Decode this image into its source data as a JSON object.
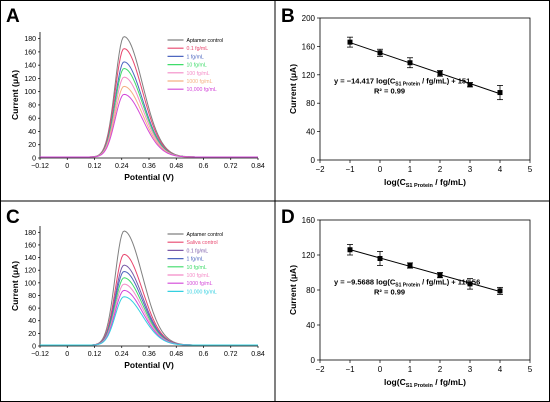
{
  "panels": [
    {
      "letter": "A",
      "chart_data": {
        "type": "line",
        "xlabel": "Potential (V)",
        "ylabel": "Current (μA)",
        "xlim": [
          -0.12,
          0.84
        ],
        "ylim": [
          0,
          190
        ],
        "xticks": [
          "−0.12",
          "0",
          "0.12",
          "0.24",
          "0.36",
          "0.48",
          "0.6",
          "0.72",
          "0.84"
        ],
        "yticks": [
          "0",
          "20",
          "40",
          "60",
          "80",
          "100",
          "120",
          "140",
          "160",
          "180"
        ],
        "legend_position": "top-right",
        "peak_x": 0.25,
        "series": [
          {
            "name": "Aptamer control",
            "peak": 183,
            "color": "#808080"
          },
          {
            "name": "0.1 fg/mL",
            "peak": 165,
            "color": "#e8476e"
          },
          {
            "name": "1 fg/mL",
            "peak": 145,
            "color": "#4e67c0"
          },
          {
            "name": "10 fg/mL",
            "peak": 135,
            "color": "#3fdc6a"
          },
          {
            "name": "100 fg/mL",
            "peak": 122,
            "color": "#f48bc7"
          },
          {
            "name": "1000 fg/mL",
            "peak": 108,
            "color": "#f4b183"
          },
          {
            "name": "10,000 fg/mL",
            "peak": 96,
            "color": "#d347d8"
          }
        ]
      }
    },
    {
      "letter": "B",
      "chart_data": {
        "type": "scatter",
        "xlabel_main": "log(C",
        "xlabel_sub": "S1 Protein",
        "xlabel_end": " / fg/mL)",
        "ylabel": "Current (μA)",
        "xlim": [
          -2,
          5
        ],
        "ylim": [
          0,
          200
        ],
        "xticks": [
          "−2",
          "−1",
          "0",
          "1",
          "2",
          "3",
          "4",
          "5"
        ],
        "yticks": [
          "0",
          "40",
          "80",
          "120",
          "160",
          "200"
        ],
        "x": [
          -1,
          0,
          1,
          2,
          3,
          4
        ],
        "y": [
          166,
          151,
          137,
          122,
          106,
          95
        ],
        "error": [
          7,
          5,
          7,
          4,
          3,
          10
        ],
        "fit": {
          "slope": -14.417,
          "intercept": 151
        },
        "equation_parts": [
          "y = −14.417 log(C",
          "S1 Protein",
          " / fg/mL) + 151"
        ],
        "r2": "R² = 0.99"
      }
    },
    {
      "letter": "C",
      "chart_data": {
        "type": "line",
        "xlabel": "Potential (V)",
        "ylabel": "Current (μA)",
        "xlim": [
          -0.12,
          0.84
        ],
        "ylim": [
          0,
          190
        ],
        "xticks": [
          "−0.12",
          "0",
          "0.12",
          "0.24",
          "0.36",
          "0.48",
          "0.6",
          "0.72",
          "0.84"
        ],
        "yticks": [
          "0",
          "20",
          "40",
          "60",
          "80",
          "100",
          "120",
          "140",
          "160",
          "180"
        ],
        "legend_position": "top-right",
        "peak_x": 0.25,
        "series": [
          {
            "name": "Aptamer control",
            "peak": 182,
            "color": "#808080"
          },
          {
            "name": "Saliva control",
            "peak": 145,
            "color": "#e8476e"
          },
          {
            "name": "0.1 fg/mL",
            "peak": 128,
            "color": "#7a5aa8"
          },
          {
            "name": "1 fg/mL",
            "peak": 118,
            "color": "#4e67c0"
          },
          {
            "name": "10 fg/mL",
            "peak": 108,
            "color": "#3fdc6a"
          },
          {
            "name": "100 fg/mL",
            "peak": 98,
            "color": "#f48bc7"
          },
          {
            "name": "1000 fg/mL",
            "peak": 88,
            "color": "#d347d8"
          },
          {
            "name": "10,000 fg/mL",
            "peak": 78,
            "color": "#34d0e0"
          }
        ]
      }
    },
    {
      "letter": "D",
      "chart_data": {
        "type": "scatter",
        "xlabel_main": "log(C",
        "xlabel_sub": "S1 Protein",
        "xlabel_end": " / fg/mL)",
        "ylabel": "Current (μA)",
        "xlim": [
          -2,
          5
        ],
        "ylim": [
          0,
          160
        ],
        "xticks": [
          "−2",
          "−1",
          "0",
          "1",
          "2",
          "3",
          "4",
          "5"
        ],
        "yticks": [
          "0",
          "40",
          "80",
          "120",
          "160"
        ],
        "x": [
          -1,
          0,
          1,
          2,
          3,
          4
        ],
        "y": [
          126,
          116,
          108,
          97,
          87,
          79
        ],
        "error": [
          6,
          8,
          3,
          3,
          6,
          4
        ],
        "fit": {
          "slope": -9.5688,
          "intercept": 116.56
        },
        "equation_parts": [
          "y = −9.5688 log(C",
          "S1 Protein",
          " / fg/mL) + 116.56"
        ],
        "r2": "R² = 0.99"
      }
    }
  ]
}
